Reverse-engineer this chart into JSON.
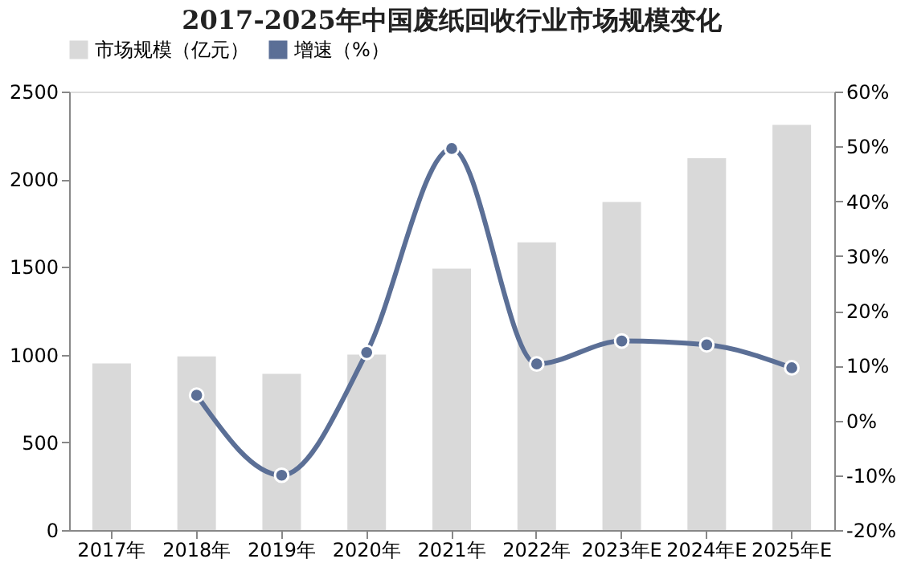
{
  "chart_data": {
    "type": "bar",
    "title": "2017-2025年中国废纸回收行业市场规模变化",
    "categories": [
      "2017年",
      "2018年",
      "2019年",
      "2020年",
      "2021年",
      "2022年",
      "2023年E",
      "2024年E",
      "2025年E"
    ],
    "series": [
      {
        "name": "市场规模（亿元）",
        "color": "#d9d9d9",
        "values": [
          950,
          990,
          890,
          1000,
          1490,
          1640,
          1870,
          2120,
          2310
        ]
      },
      {
        "name": "增速（%）",
        "type": "line",
        "axis": "y2",
        "color": "#5b6f96",
        "values": [
          null,
          4.6,
          -10,
          12.4,
          49.6,
          10.3,
          14.5,
          13.8,
          9.6
        ]
      }
    ],
    "ylim": [
      0,
      2500
    ],
    "yticks": [
      0,
      500,
      1000,
      1500,
      2000,
      2500
    ],
    "y2lim": [
      -20,
      60
    ],
    "y2ticks": [
      {
        "value": -20,
        "label": "-20%"
      },
      {
        "value": -10,
        "label": "-10%"
      },
      {
        "value": 0,
        "label": "0%"
      },
      {
        "value": 10,
        "label": "10%"
      },
      {
        "value": 20,
        "label": "20%"
      },
      {
        "value": 30,
        "label": "30%"
      },
      {
        "value": 40,
        "label": "40%"
      },
      {
        "value": 50,
        "label": "50%"
      },
      {
        "value": 60,
        "label": "60%"
      }
    ],
    "grid": false,
    "legend": "top",
    "marker": "circle",
    "line_style": "solid"
  }
}
